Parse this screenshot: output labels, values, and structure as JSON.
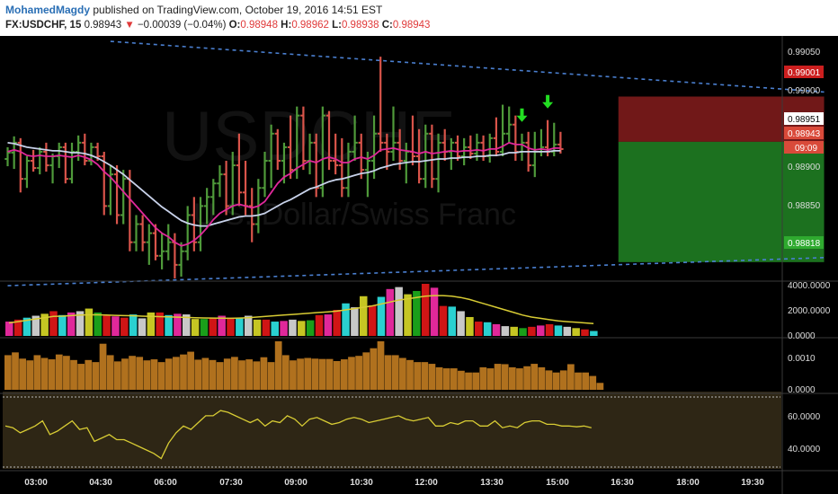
{
  "header": {
    "author": "MohamedMagdy",
    "published_text": "published on TradingView.com, October 19, 2016 14:51 EST",
    "symbol": "FX:USDCHF, 15",
    "last": "0.98943",
    "change": "−0.00039 (−0.04%)",
    "o_label": "O:",
    "o_value": "0.98948",
    "h_label": "H:",
    "h_value": "0.98962",
    "l_label": "L:",
    "l_value": "0.98938",
    "c_label": "C:",
    "c_value": "0.98943"
  },
  "watermark": {
    "symbol": "USDCHF",
    "name": "U.S. Dollar/Swiss Franc"
  },
  "colors": {
    "background": "#000000",
    "up": "#4f9a3a",
    "down": "#d9544a",
    "ema_fast": "#e0289a",
    "ema_slow": "#c8d2ea",
    "trendline": "#4a7fd0",
    "short_stop_zone": "#7d1b1b",
    "short_target_zone": "#1f7d22",
    "arrow": "#22dd22",
    "oscillator_line": "#d8cc34",
    "atr_bar": "#b0711e",
    "volume_ma": "#d8cc34"
  },
  "price_axis": {
    "ticks": [
      "0.99050",
      "0.99000",
      "0.98950",
      "0.98900",
      "0.98850"
    ],
    "badge_upper": "0.99001",
    "badge_entry": "0.98951",
    "badge_last": "0.98943",
    "badge_timer": "09:09",
    "badge_lower": "0.98818"
  },
  "volume_axis": {
    "ticks": [
      "4000.0000",
      "2000.0000",
      "0.0000"
    ]
  },
  "atr_axis": {
    "ticks": [
      "0.0010",
      "0.0000"
    ]
  },
  "osc_axis": {
    "ticks": [
      "60.0000",
      "40.0000"
    ]
  },
  "time_axis": {
    "ticks": [
      "03:00",
      "04:30",
      "06:00",
      "07:30",
      "09:00",
      "10:30",
      "12:00",
      "13:30",
      "15:00",
      "16:30",
      "18:00",
      "19:30"
    ]
  },
  "chart_data": {
    "type": "candlestick",
    "symbol": "FX:USDCHF",
    "interval": "15",
    "price_range": [
      0.98798,
      0.99068
    ],
    "candles": [
      [
        0.98932,
        0.98945,
        0.98924,
        0.98939
      ],
      [
        0.98939,
        0.98957,
        0.98921,
        0.9895
      ],
      [
        0.9895,
        0.98955,
        0.98895,
        0.9891
      ],
      [
        0.9891,
        0.98935,
        0.989,
        0.9893
      ],
      [
        0.9893,
        0.98942,
        0.98918,
        0.98922
      ],
      [
        0.98922,
        0.98945,
        0.98915,
        0.9894
      ],
      [
        0.9894,
        0.9895,
        0.98918,
        0.98925
      ],
      [
        0.98925,
        0.98938,
        0.98905,
        0.98935
      ],
      [
        0.98935,
        0.9895,
        0.98922,
        0.98945
      ],
      [
        0.98945,
        0.9895,
        0.98905,
        0.9891
      ],
      [
        0.9891,
        0.9895,
        0.98905,
        0.9894
      ],
      [
        0.9894,
        0.98958,
        0.9893,
        0.9895
      ],
      [
        0.9895,
        0.9896,
        0.98925,
        0.9893
      ],
      [
        0.9893,
        0.9895,
        0.98925,
        0.98945
      ],
      [
        0.98945,
        0.9895,
        0.9893,
        0.98935
      ],
      [
        0.98935,
        0.9894,
        0.9887,
        0.9888
      ],
      [
        0.9888,
        0.98925,
        0.9887,
        0.98915
      ],
      [
        0.98915,
        0.98925,
        0.9886,
        0.9887
      ],
      [
        0.9887,
        0.9892,
        0.9886,
        0.9891
      ],
      [
        0.9891,
        0.9892,
        0.9883,
        0.9884
      ],
      [
        0.9884,
        0.9887,
        0.9883,
        0.9886
      ],
      [
        0.9886,
        0.9887,
        0.9883,
        0.9884
      ],
      [
        0.9884,
        0.9886,
        0.98815,
        0.9885
      ],
      [
        0.9885,
        0.9886,
        0.9882,
        0.98825
      ],
      [
        0.98825,
        0.9885,
        0.9881,
        0.9883
      ],
      [
        0.9883,
        0.9886,
        0.9882,
        0.9884
      ],
      [
        0.9884,
        0.9885,
        0.988,
        0.98815
      ],
      [
        0.98815,
        0.9884,
        0.98802,
        0.9883
      ],
      [
        0.9883,
        0.9888,
        0.9882,
        0.9887
      ],
      [
        0.9887,
        0.9889,
        0.9883,
        0.9884
      ],
      [
        0.9884,
        0.9889,
        0.9883,
        0.9888
      ],
      [
        0.9888,
        0.989,
        0.9886,
        0.9889
      ],
      [
        0.9889,
        0.9891,
        0.9887,
        0.98905
      ],
      [
        0.98905,
        0.98925,
        0.9889,
        0.98915
      ],
      [
        0.98915,
        0.9893,
        0.9887,
        0.9888
      ],
      [
        0.9888,
        0.9894,
        0.9887,
        0.98925
      ],
      [
        0.98925,
        0.9896,
        0.9888,
        0.98895
      ],
      [
        0.98895,
        0.9893,
        0.9887,
        0.9888
      ],
      [
        0.9888,
        0.989,
        0.9884,
        0.9886
      ],
      [
        0.9886,
        0.9891,
        0.9885,
        0.989
      ],
      [
        0.989,
        0.9894,
        0.9889,
        0.9893
      ],
      [
        0.9893,
        0.9897,
        0.989,
        0.9896
      ],
      [
        0.9896,
        0.98965,
        0.9892,
        0.9893
      ],
      [
        0.9893,
        0.9895,
        0.98905,
        0.98945
      ],
      [
        0.98945,
        0.9898,
        0.9891,
        0.9892
      ],
      [
        0.9892,
        0.9899,
        0.9891,
        0.9898
      ],
      [
        0.9898,
        0.9899,
        0.9892,
        0.9893
      ],
      [
        0.9893,
        0.9896,
        0.98915,
        0.9895
      ],
      [
        0.9895,
        0.9896,
        0.9889,
        0.989
      ],
      [
        0.989,
        0.9899,
        0.9889,
        0.9898
      ],
      [
        0.9898,
        0.98985,
        0.9892,
        0.9893
      ],
      [
        0.9893,
        0.9896,
        0.98915,
        0.98925
      ],
      [
        0.98925,
        0.98955,
        0.9889,
        0.989
      ],
      [
        0.989,
        0.9895,
        0.9889,
        0.9894
      ],
      [
        0.9894,
        0.9898,
        0.9893,
        0.9895
      ],
      [
        0.9895,
        0.9896,
        0.9891,
        0.9892
      ],
      [
        0.9892,
        0.9894,
        0.9889,
        0.9893
      ],
      [
        0.9893,
        0.9898,
        0.9891,
        0.9896
      ],
      [
        0.9896,
        0.99045,
        0.9894,
        0.9895
      ],
      [
        0.9895,
        0.9896,
        0.9892,
        0.9894
      ],
      [
        0.9894,
        0.9899,
        0.9893,
        0.9895
      ],
      [
        0.9895,
        0.98965,
        0.9892,
        0.9893
      ],
      [
        0.9893,
        0.9895,
        0.98905,
        0.9894
      ],
      [
        0.9894,
        0.9898,
        0.98925,
        0.98935
      ],
      [
        0.98935,
        0.98965,
        0.98905,
        0.9891
      ],
      [
        0.9891,
        0.9897,
        0.989,
        0.9896
      ],
      [
        0.9896,
        0.9897,
        0.989,
        0.9891
      ],
      [
        0.9891,
        0.9896,
        0.98895,
        0.9895
      ],
      [
        0.9895,
        0.98965,
        0.9893,
        0.9894
      ],
      [
        0.9894,
        0.98955,
        0.9892,
        0.9895
      ],
      [
        0.9895,
        0.98958,
        0.9893,
        0.98935
      ],
      [
        0.98935,
        0.98955,
        0.98925,
        0.98945
      ],
      [
        0.98945,
        0.98958,
        0.98932,
        0.98938
      ],
      [
        0.98938,
        0.9896,
        0.9893,
        0.9895
      ],
      [
        0.9895,
        0.98958,
        0.9893,
        0.98935
      ],
      [
        0.98935,
        0.9896,
        0.98928,
        0.98955
      ],
      [
        0.98955,
        0.98978,
        0.98935,
        0.9894
      ],
      [
        0.9894,
        0.98992,
        0.98935,
        0.9896
      ],
      [
        0.9896,
        0.9899,
        0.9895,
        0.9897
      ],
      [
        0.9897,
        0.9898,
        0.9893,
        0.9894
      ],
      [
        0.9894,
        0.9896,
        0.9893,
        0.9895
      ],
      [
        0.9895,
        0.98962,
        0.98918,
        0.98925
      ],
      [
        0.98925,
        0.98962,
        0.98912,
        0.9894
      ],
      [
        0.9894,
        0.98965,
        0.98935,
        0.98945
      ],
      [
        0.98945,
        0.98975,
        0.98935,
        0.9894
      ],
      [
        0.9894,
        0.98972,
        0.98935,
        0.98948
      ],
      [
        0.98948,
        0.98962,
        0.98938,
        0.98943
      ]
    ],
    "ema_fast": [
      0.9894,
      0.98942,
      0.9894,
      0.98936,
      0.98935,
      0.98936,
      0.98935,
      0.98935,
      0.98936,
      0.98935,
      0.98934,
      0.98936,
      0.98934,
      0.98931,
      0.98926,
      0.98918,
      0.98912,
      0.98904,
      0.98896,
      0.98888,
      0.9888,
      0.98872,
      0.98864,
      0.98856,
      0.9885,
      0.98846,
      0.9884,
      0.98836,
      0.98838,
      0.98842,
      0.98848,
      0.98856,
      0.98865,
      0.98872,
      0.98876,
      0.9888,
      0.98882,
      0.9888,
      0.98878,
      0.9888,
      0.98885,
      0.98895,
      0.98905,
      0.98912,
      0.98916,
      0.98922,
      0.98926,
      0.9893,
      0.98928,
      0.98932,
      0.98934,
      0.98932,
      0.98928,
      0.98928,
      0.98932,
      0.98934,
      0.98932,
      0.98936,
      0.98942,
      0.98943,
      0.98944,
      0.98942,
      0.98941,
      0.9894,
      0.98938,
      0.9894,
      0.98938,
      0.98939,
      0.9894,
      0.98941,
      0.9894,
      0.98941,
      0.98941,
      0.98942,
      0.98941,
      0.98943,
      0.98943,
      0.98946,
      0.9895,
      0.98948,
      0.98948,
      0.98944,
      0.98942,
      0.98943,
      0.98942,
      0.98944,
      0.98944
    ],
    "ema_slow": [
      0.9895,
      0.98949,
      0.98947,
      0.98945,
      0.98944,
      0.98943,
      0.98942,
      0.98941,
      0.98941,
      0.9894,
      0.98939,
      0.98939,
      0.98938,
      0.98936,
      0.98933,
      0.98929,
      0.98925,
      0.9892,
      0.98915,
      0.98909,
      0.98903,
      0.98897,
      0.98891,
      0.98885,
      0.98879,
      0.98874,
      0.98869,
      0.98864,
      0.98861,
      0.98859,
      0.98858,
      0.98858,
      0.9886,
      0.98862,
      0.98864,
      0.98866,
      0.98868,
      0.98869,
      0.98869,
      0.9887,
      0.98872,
      0.98876,
      0.9888,
      0.98884,
      0.98887,
      0.98891,
      0.98895,
      0.98899,
      0.98901,
      0.98904,
      0.98907,
      0.98909,
      0.9891,
      0.98912,
      0.98914,
      0.98916,
      0.98917,
      0.98919,
      0.98922,
      0.98924,
      0.98926,
      0.98927,
      0.98928,
      0.98929,
      0.98929,
      0.9893,
      0.98931,
      0.98932,
      0.98932,
      0.98933,
      0.98933,
      0.98934,
      0.98934,
      0.98935,
      0.98935,
      0.98936,
      0.98936,
      0.98937,
      0.98939,
      0.98939,
      0.9894,
      0.9894,
      0.9894,
      0.9894,
      0.9894,
      0.98941,
      0.98941
    ],
    "trendline_upper": {
      "start_index": 16,
      "start_price": 0.99062,
      "end_index": 127,
      "end_price": 0.99006
    },
    "trendline_lower": {
      "start_index": 0,
      "start_price": 0.98792,
      "end_index": 127,
      "end_price": 0.98823
    },
    "position_short": {
      "start_index": 95,
      "end_index": 127,
      "entry": 0.98951,
      "stop": 0.99001,
      "target": 0.98818
    },
    "signal_arrows_index": [
      80,
      84
    ],
    "volume": [
      1100,
      1250,
      1400,
      1550,
      1700,
      1900,
      1600,
      1800,
      1900,
      2100,
      1800,
      1550,
      1500,
      1400,
      1650,
      1350,
      1800,
      1800,
      1600,
      1700,
      1650,
      1300,
      1300,
      1400,
      1550,
      1400,
      1350,
      1550,
      1250,
      1250,
      1100,
      1150,
      1250,
      1150,
      1200,
      1600,
      1650,
      2000,
      2500,
      2200,
      3050,
      2350,
      3000,
      3600,
      3750,
      3200,
      3450,
      4000,
      3700,
      2300,
      2250,
      1900,
      1450,
      1100,
      1050,
      900,
      750,
      700,
      600,
      700,
      800,
      900,
      800,
      700,
      600,
      500,
      380
    ],
    "volume_ma": [
      1000,
      1100,
      1200,
      1300,
      1400,
      1500,
      1520,
      1560,
      1600,
      1620,
      1620,
      1600,
      1580,
      1560,
      1550,
      1520,
      1500,
      1480,
      1460,
      1440,
      1420,
      1400,
      1380,
      1370,
      1360,
      1350,
      1370,
      1400,
      1450,
      1500,
      1550,
      1600,
      1650,
      1700,
      1750,
      1800,
      1850,
      1900,
      2000,
      2100,
      2200,
      2300,
      2450,
      2600,
      2750,
      2850,
      2950,
      3050,
      3100,
      3100,
      3050,
      2950,
      2800,
      2600,
      2400,
      2200,
      2000,
      1800,
      1600,
      1450,
      1350,
      1250,
      1150,
      1100,
      1050,
      1000,
      950
    ],
    "atr": [
      0.001,
      0.00108,
      0.0009,
      0.00085,
      0.001,
      0.00092,
      0.00088,
      0.00102,
      0.00098,
      0.00086,
      0.00075,
      0.00086,
      0.0008,
      0.00133,
      0.001,
      0.00082,
      0.0009,
      0.00098,
      0.00095,
      0.00085,
      0.00088,
      0.0008,
      0.0009,
      0.00095,
      0.00102,
      0.0011,
      0.00087,
      0.00092,
      0.00086,
      0.0008,
      0.0009,
      0.00095,
      0.00085,
      0.00088,
      0.00082,
      0.00094,
      0.0008,
      0.0014,
      0.001,
      0.00085,
      0.0009,
      0.00092,
      0.0009,
      0.00089,
      0.00089,
      0.00083,
      0.00088,
      0.00095,
      0.00098,
      0.00108,
      0.0012,
      0.0014,
      0.001,
      0.001,
      0.00092,
      0.00086,
      0.0008,
      0.0008,
      0.00075,
      0.00065,
      0.00062,
      0.00062,
      0.00055,
      0.0005,
      0.0005,
      0.00065,
      0.00062,
      0.00075,
      0.00074,
      0.00065,
      0.00062,
      0.00068,
      0.00075,
      0.00065,
      0.00056,
      0.0005,
      0.00056,
      0.00074,
      0.0005,
      0.0005,
      0.0004,
      0.0002,
      0.0
    ],
    "oscillator": [
      52.0,
      51.0,
      48.0,
      50.0,
      52.0,
      55.0,
      47.0,
      49.0,
      52.0,
      55.0,
      50.0,
      51.0,
      43.0,
      45.0,
      47.0,
      44.0,
      44.0,
      42.0,
      40.0,
      38.0,
      36.0,
      33.0,
      42.0,
      48.0,
      52.0,
      50.0,
      54.0,
      58.0,
      58.0,
      61.0,
      60.0,
      58.0,
      56.0,
      54.0,
      56.0,
      52.0,
      55.0,
      54.0,
      58.0,
      56.0,
      52.0,
      56.0,
      57.0,
      55.0,
      53.0,
      54.0,
      56.0,
      57.0,
      56.0,
      54.0,
      55.0,
      56.0,
      57.0,
      58.0,
      56.0,
      55.0,
      56.0,
      57.0,
      52.0,
      52.0,
      54.0,
      53.0,
      55.0,
      55.0,
      52.0,
      52.0,
      55.0,
      51.0,
      52.0,
      51.0,
      54.0,
      55.0,
      55.0,
      53.0,
      53.0,
      52.0,
      52.0,
      51.5,
      52.0,
      51.0
    ]
  }
}
